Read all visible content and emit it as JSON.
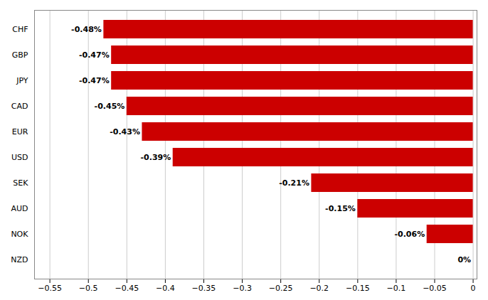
{
  "chart_data": {
    "type": "bar",
    "orientation": "horizontal",
    "categories": [
      "NZD",
      "NOK",
      "AUD",
      "SEK",
      "USD",
      "EUR",
      "CAD",
      "JPY",
      "GBP",
      "CHF"
    ],
    "values": [
      0.0,
      -0.06,
      -0.15,
      -0.21,
      -0.39,
      -0.43,
      -0.45,
      -0.47,
      -0.47,
      -0.48
    ],
    "value_labels": [
      "0%",
      "-0.06%",
      "-0.15%",
      "-0.21%",
      "-0.39%",
      "-0.43%",
      "-0.45%",
      "-0.47%",
      "-0.47%",
      "-0.48%"
    ],
    "data_labels": true,
    "color": "#cc0000",
    "xlim": [
      -0.57,
      0.005
    ],
    "xticks": [
      {
        "value": -0.55,
        "label": "−0.55"
      },
      {
        "value": -0.5,
        "label": "−0.5"
      },
      {
        "value": -0.45,
        "label": "−0.45"
      },
      {
        "value": -0.4,
        "label": "−0.4"
      },
      {
        "value": -0.35,
        "label": "−0.35"
      },
      {
        "value": -0.3,
        "label": "−0.3"
      },
      {
        "value": -0.25,
        "label": "−0.25"
      },
      {
        "value": -0.2,
        "label": "−0.2"
      },
      {
        "value": -0.15,
        "label": "−0.15"
      },
      {
        "value": -0.1,
        "label": "−0.1"
      },
      {
        "value": -0.05,
        "label": "−0.05"
      },
      0
    ],
    "grid": true
  }
}
